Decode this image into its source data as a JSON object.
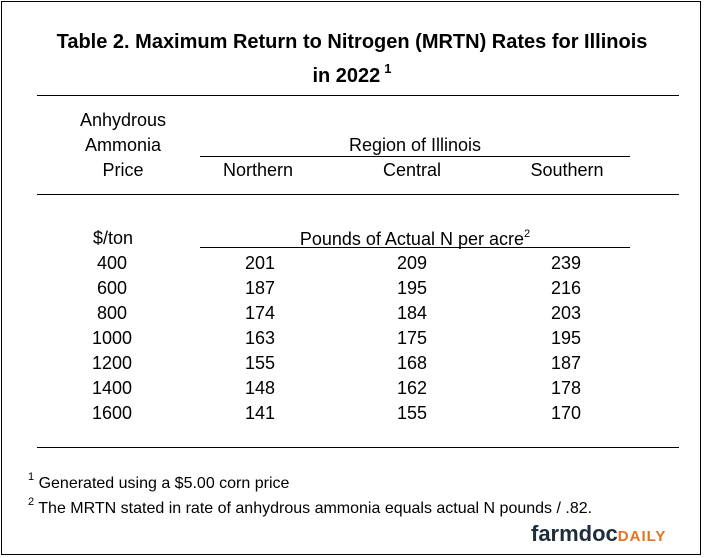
{
  "title": {
    "line1": "Table 2.  Maximum Return to Nitrogen (MRTN) Rates for Illinois",
    "line2": "in 2022",
    "note_mark": "1"
  },
  "header": {
    "price_label": [
      "Anhydrous",
      "Ammonia",
      "Price"
    ],
    "region_label": "Region of Illinois",
    "regions": [
      "Northern",
      "Central",
      "Southern"
    ],
    "price_unit": "$/ton",
    "value_unit": "Pounds of Actual N per acre",
    "value_unit_mark": "2"
  },
  "rows": [
    {
      "price": "400",
      "northern": "201",
      "central": "209",
      "southern": "239"
    },
    {
      "price": "600",
      "northern": "187",
      "central": "195",
      "southern": "216"
    },
    {
      "price": "800",
      "northern": "174",
      "central": "184",
      "southern": "203"
    },
    {
      "price": "1000",
      "northern": "163",
      "central": "175",
      "southern": "195"
    },
    {
      "price": "1200",
      "northern": "155",
      "central": "168",
      "southern": "187"
    },
    {
      "price": "1400",
      "northern": "148",
      "central": "162",
      "southern": "178"
    },
    {
      "price": "1600",
      "northern": "141",
      "central": "155",
      "southern": "170"
    }
  ],
  "footnotes": [
    {
      "mark": "1",
      "text": "Generated using a $5.00 corn price"
    },
    {
      "mark": "2",
      "text": "The MRTN stated in rate of anhydrous ammonia equals actual N pounds / .82."
    }
  ],
  "logo": {
    "part1": "farmdoc",
    "part2": "DAILY"
  }
}
